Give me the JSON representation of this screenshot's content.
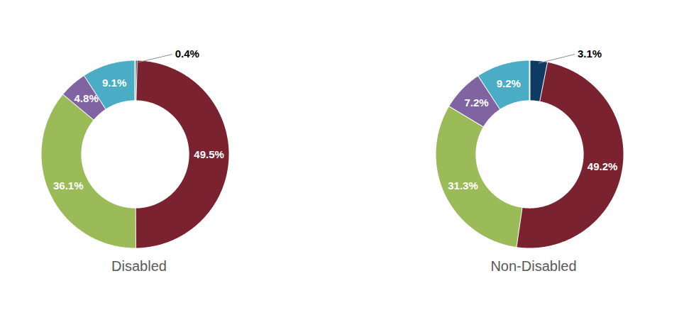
{
  "chart_data": [
    {
      "type": "donut",
      "title": "Disabled",
      "values": [
        0.4,
        49.5,
        36.1,
        4.8,
        9.1
      ],
      "value_labels": [
        "0.4%",
        "49.5%",
        "36.1%",
        "4.8%",
        "9.1%"
      ],
      "colors": [
        "#0e3a64",
        "#7b2230",
        "#9bbb59",
        "#8064a2",
        "#4bacc6"
      ],
      "data_labels": true
    },
    {
      "type": "donut",
      "title": "Non-Disabled",
      "values": [
        3.1,
        49.2,
        31.3,
        7.2,
        9.2
      ],
      "value_labels": [
        "3.1%",
        "49.2%",
        "31.3%",
        "7.2%",
        "9.2%"
      ],
      "colors": [
        "#0e3a64",
        "#7b2230",
        "#9bbb59",
        "#8064a2",
        "#4bacc6"
      ],
      "data_labels": true
    }
  ]
}
